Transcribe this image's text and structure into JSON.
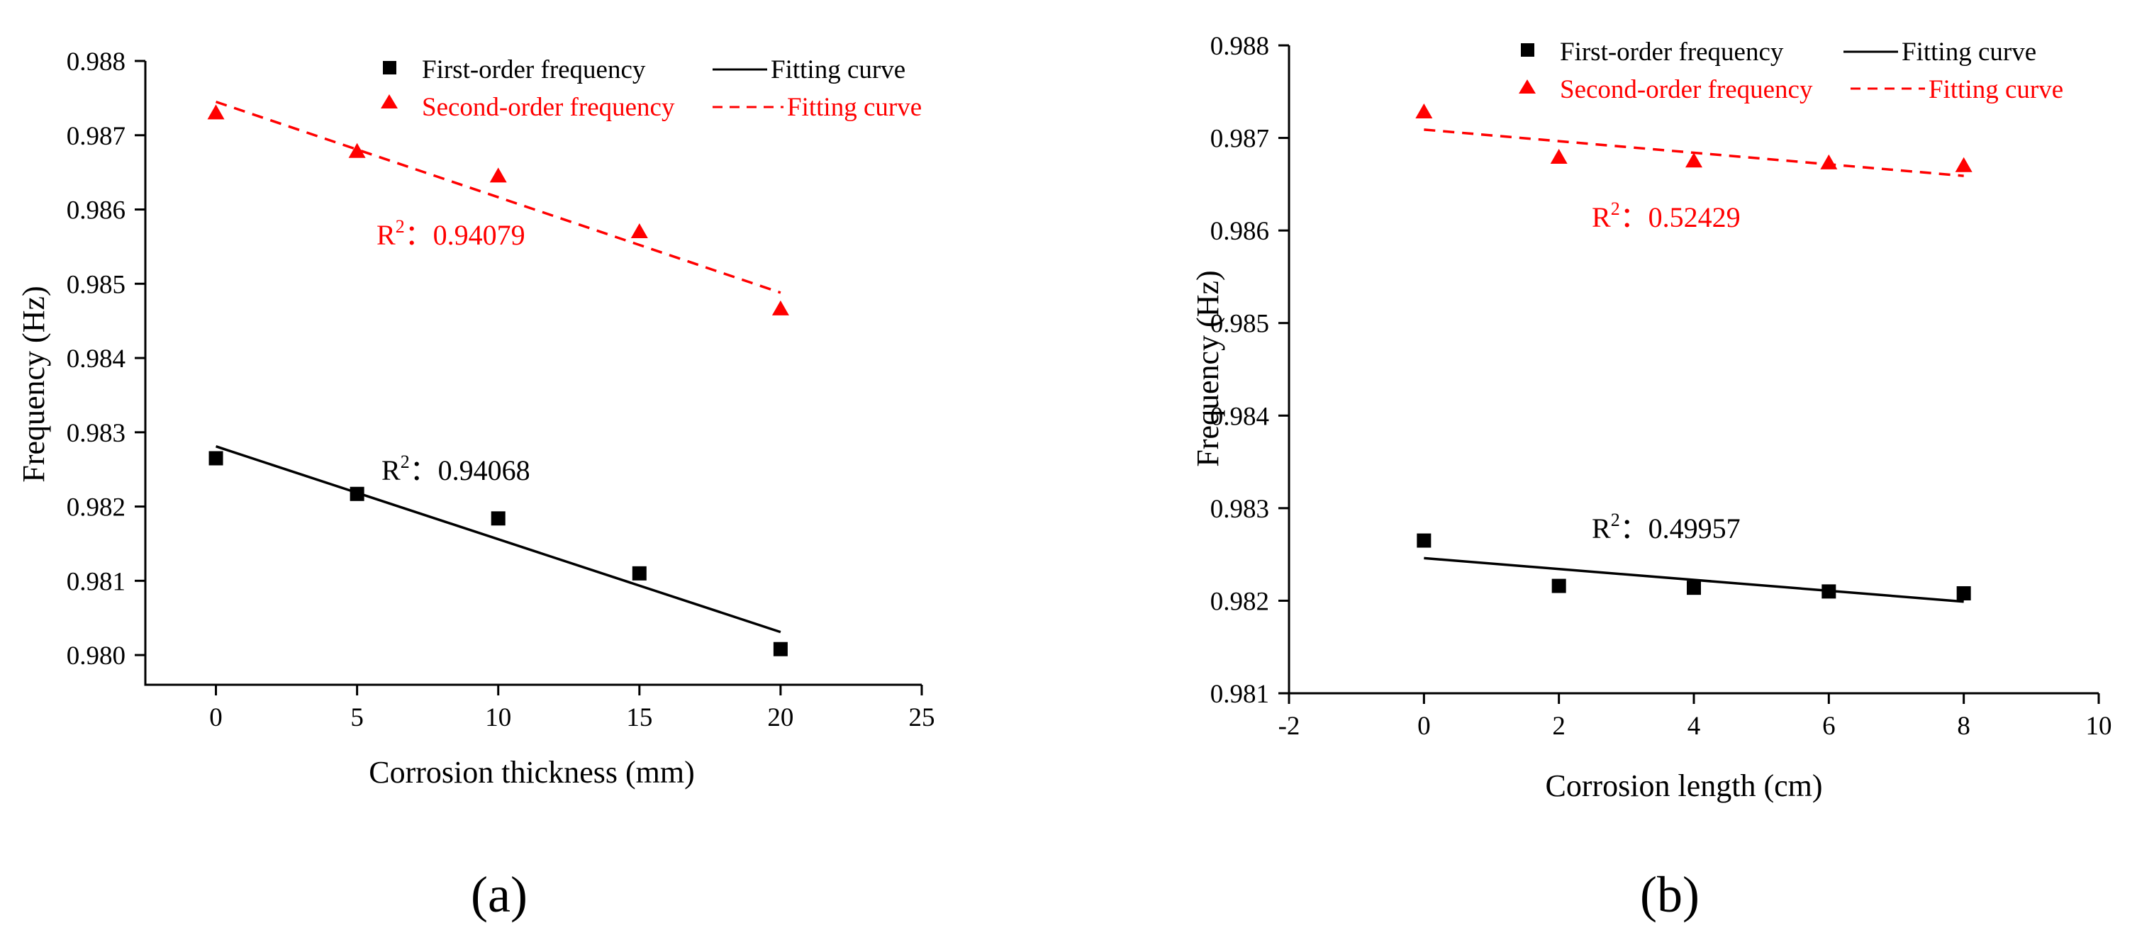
{
  "chart_data": [
    {
      "type": "scatter",
      "panel_label": "(a)",
      "xlabel": "Corrosion thickness (mm)",
      "ylabel": "Frequency (Hz)",
      "xlim": [
        -2.5,
        25
      ],
      "ylim": [
        0.9796,
        0.988
      ],
      "xticks": [
        0,
        5,
        10,
        15,
        20,
        25
      ],
      "yticks": [
        0.98,
        0.981,
        0.982,
        0.983,
        0.984,
        0.985,
        0.986,
        0.987,
        0.988
      ],
      "xtick_labels": [
        "0",
        "5",
        "10",
        "15",
        "20",
        "25"
      ],
      "ytick_labels": [
        "0.980",
        "0.981",
        "0.982",
        "0.983",
        "0.984",
        "0.985",
        "0.986",
        "0.987",
        "0.988"
      ],
      "series": [
        {
          "name": "First-order frequency",
          "marker": "square",
          "color": "#000000",
          "x": [
            0,
            5,
            10,
            15,
            20
          ],
          "y": [
            0.98265,
            0.98217,
            0.98184,
            0.9811,
            0.98008
          ]
        },
        {
          "name": "Second-order frequency",
          "marker": "triangle",
          "color": "#ff0000",
          "x": [
            0,
            5,
            10,
            15,
            20
          ],
          "y": [
            0.9873,
            0.98678,
            0.98645,
            0.9857,
            0.98466
          ]
        }
      ],
      "fits": [
        {
          "name": "Fitting curve",
          "style": "solid",
          "color": "#000000",
          "x": [
            0,
            20
          ],
          "y": [
            0.98281,
            0.98031
          ],
          "r2_label": "R",
          "r2_sup": "2",
          "r2_value": "：0.94068"
        },
        {
          "name": "Fitting curve",
          "style": "dashed",
          "color": "#ff0000",
          "x": [
            0,
            20
          ],
          "y": [
            0.98745,
            0.98488
          ],
          "r2_label": "R",
          "r2_sup": "2",
          "r2_value": "：0.94079"
        }
      ],
      "legend_position": "top"
    },
    {
      "type": "scatter",
      "panel_label": "(b)",
      "xlabel": "Corrosion length (cm)",
      "ylabel": "Frequency (Hz)",
      "xlim": [
        -2,
        10
      ],
      "ylim": [
        0.981,
        0.988
      ],
      "xticks": [
        -2,
        0,
        2,
        4,
        6,
        8,
        10
      ],
      "yticks": [
        0.981,
        0.982,
        0.983,
        0.984,
        0.985,
        0.986,
        0.987,
        0.988
      ],
      "xtick_labels": [
        "-2",
        "0",
        "2",
        "4",
        "6",
        "8",
        "10"
      ],
      "ytick_labels": [
        "0.981",
        "0.982",
        "0.983",
        "0.984",
        "0.985",
        "0.986",
        "0.987",
        "0.988"
      ],
      "series": [
        {
          "name": "First-order frequency",
          "marker": "square",
          "color": "#000000",
          "x": [
            0,
            2,
            4,
            6,
            8
          ],
          "y": [
            0.98265,
            0.98216,
            0.98214,
            0.9821,
            0.98208
          ]
        },
        {
          "name": "Second-order frequency",
          "marker": "triangle",
          "color": "#ff0000",
          "x": [
            0,
            2,
            4,
            6,
            8
          ],
          "y": [
            0.98728,
            0.98679,
            0.98675,
            0.98673,
            0.9867
          ]
        }
      ],
      "fits": [
        {
          "name": "Fitting curve",
          "style": "solid",
          "color": "#000000",
          "x": [
            0,
            8
          ],
          "y": [
            0.98246,
            0.98199
          ],
          "r2_label": "R",
          "r2_sup": "2",
          "r2_value": "：0.49957"
        },
        {
          "name": "Fitting curve",
          "style": "dashed",
          "color": "#ff0000",
          "x": [
            0,
            8
          ],
          "y": [
            0.98709,
            0.98659
          ],
          "r2_label": "R",
          "r2_sup": "2",
          "r2_value": "：0.52429"
        }
      ],
      "legend_position": "top"
    }
  ]
}
